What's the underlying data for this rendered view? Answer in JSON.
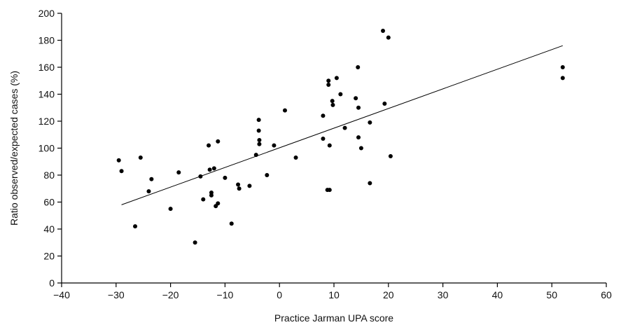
{
  "chart_data": {
    "type": "scatter",
    "title": "",
    "xlabel": "Practice Jarman UPA score",
    "ylabel": "Ratio observed/expected cases (%)",
    "xlim": [
      -40,
      60
    ],
    "ylim": [
      0,
      200
    ],
    "xticks": [
      -40,
      -30,
      -20,
      -10,
      0,
      10,
      20,
      30,
      40,
      50,
      60
    ],
    "yticks": [
      0,
      20,
      40,
      60,
      80,
      100,
      120,
      140,
      160,
      180,
      200
    ],
    "grid": false,
    "legend": "none",
    "points": [
      {
        "x": -29.5,
        "y": 91
      },
      {
        "x": -29,
        "y": 83
      },
      {
        "x": -26.5,
        "y": 42
      },
      {
        "x": -25.5,
        "y": 93
      },
      {
        "x": -24,
        "y": 68
      },
      {
        "x": -23.5,
        "y": 77
      },
      {
        "x": -20,
        "y": 55
      },
      {
        "x": -18.5,
        "y": 82
      },
      {
        "x": -15.5,
        "y": 30
      },
      {
        "x": -14.5,
        "y": 79
      },
      {
        "x": -14,
        "y": 62
      },
      {
        "x": -13,
        "y": 102
      },
      {
        "x": -12.8,
        "y": 84
      },
      {
        "x": -12.5,
        "y": 67
      },
      {
        "x": -12.5,
        "y": 65
      },
      {
        "x": -12,
        "y": 85
      },
      {
        "x": -11.7,
        "y": 57
      },
      {
        "x": -11.3,
        "y": 105
      },
      {
        "x": -11.3,
        "y": 59
      },
      {
        "x": -10,
        "y": 78
      },
      {
        "x": -8.8,
        "y": 44
      },
      {
        "x": -7.6,
        "y": 73
      },
      {
        "x": -7.4,
        "y": 70
      },
      {
        "x": -5.5,
        "y": 72
      },
      {
        "x": -4.3,
        "y": 95
      },
      {
        "x": -3.8,
        "y": 121
      },
      {
        "x": -3.8,
        "y": 113
      },
      {
        "x": -3.7,
        "y": 106
      },
      {
        "x": -3.7,
        "y": 103
      },
      {
        "x": -2.3,
        "y": 80
      },
      {
        "x": -1,
        "y": 102
      },
      {
        "x": 1,
        "y": 128
      },
      {
        "x": 3,
        "y": 93
      },
      {
        "x": 8,
        "y": 124
      },
      {
        "x": 8,
        "y": 107
      },
      {
        "x": 8.8,
        "y": 69
      },
      {
        "x": 9,
        "y": 150
      },
      {
        "x": 9,
        "y": 147
      },
      {
        "x": 9.2,
        "y": 102
      },
      {
        "x": 9.2,
        "y": 69
      },
      {
        "x": 9.7,
        "y": 135
      },
      {
        "x": 9.8,
        "y": 132
      },
      {
        "x": 10.5,
        "y": 152
      },
      {
        "x": 11.2,
        "y": 140
      },
      {
        "x": 12,
        "y": 115
      },
      {
        "x": 14,
        "y": 137
      },
      {
        "x": 14.4,
        "y": 160
      },
      {
        "x": 14.5,
        "y": 130
      },
      {
        "x": 14.5,
        "y": 108
      },
      {
        "x": 15,
        "y": 100
      },
      {
        "x": 16.6,
        "y": 119
      },
      {
        "x": 16.6,
        "y": 74
      },
      {
        "x": 19,
        "y": 187
      },
      {
        "x": 19.3,
        "y": 133
      },
      {
        "x": 20,
        "y": 182
      },
      {
        "x": 20.4,
        "y": 94
      },
      {
        "x": 52,
        "y": 160
      },
      {
        "x": 52,
        "y": 152
      }
    ],
    "regression_line": {
      "x": [
        -29,
        52
      ],
      "y": [
        58,
        176
      ]
    }
  }
}
